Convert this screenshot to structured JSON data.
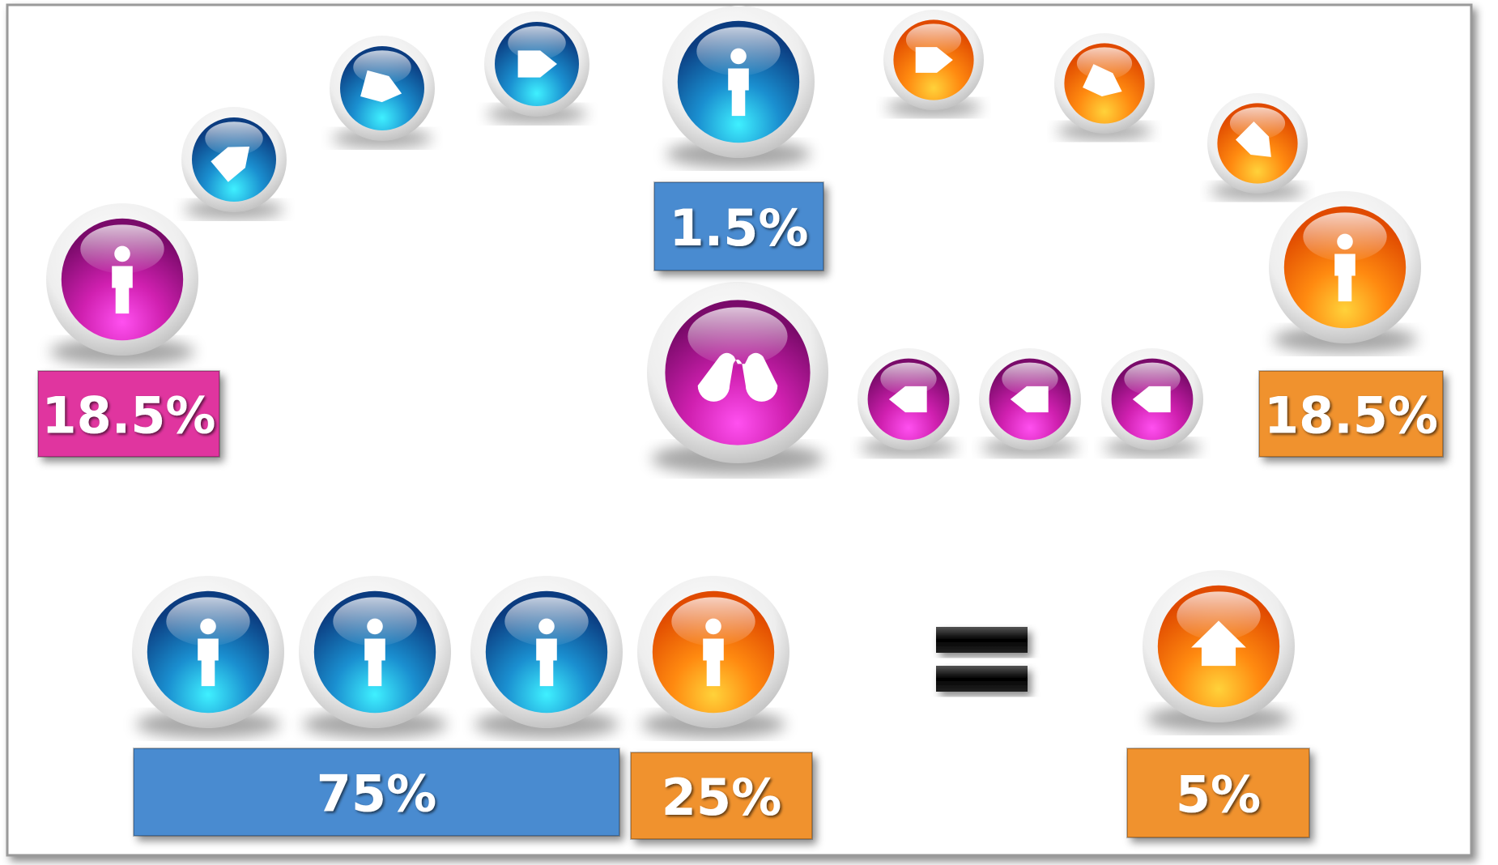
{
  "callouts": [
    "18.5%",
    "1.5%",
    "18.5%",
    "75%",
    "25%",
    "5%"
  ]
}
